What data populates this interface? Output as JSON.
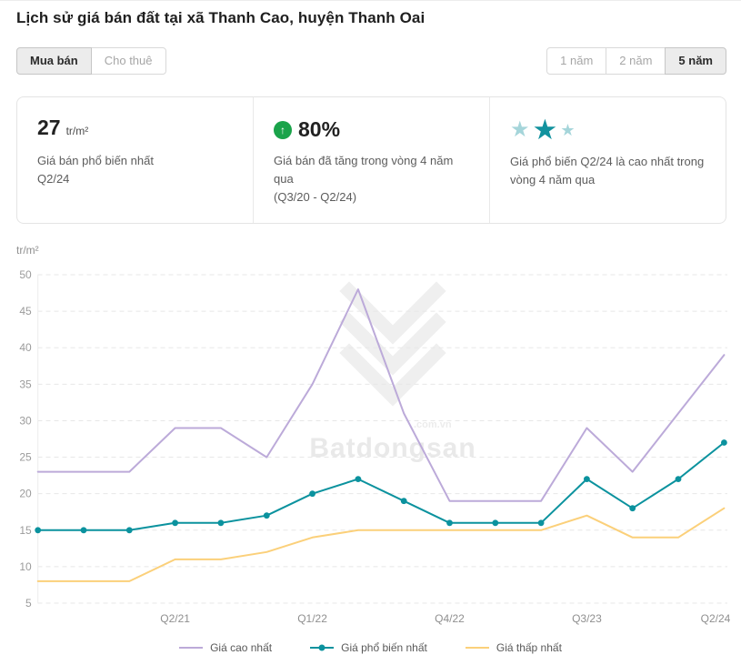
{
  "page": {
    "title": "Lịch sử giá bán đất tại xã Thanh Cao, huyện Thanh Oai"
  },
  "tabs": {
    "buy_label": "Mua bán",
    "rent_label": "Cho thuê"
  },
  "ranges": [
    {
      "label": "1 năm",
      "active": false
    },
    {
      "label": "2 năm",
      "active": false
    },
    {
      "label": "5 năm",
      "active": true
    }
  ],
  "stats": {
    "price": {
      "value": "27",
      "unit": "tr/m²",
      "line1": "Giá bán phổ biến nhất",
      "line2": "Q2/24"
    },
    "growth": {
      "value": "80%",
      "arrow": "↑",
      "arrow_color": "#1aa34a",
      "line1": "Giá bán đã tăng trong vòng 4 năm qua",
      "line2": "(Q3/20 - Q2/24)"
    },
    "rating": {
      "text": "Giá phổ biến Q2/24 là cao nhất trong vòng 4 năm qua",
      "stars": [
        {
          "color": "#a5d5da",
          "size": 24
        },
        {
          "color": "#12929e",
          "size": 31
        },
        {
          "color": "#a5d5da",
          "size": 18
        }
      ]
    }
  },
  "watermark": {
    "brand": "Batdongsan",
    "suffix": ".com.vn"
  },
  "chart_data": {
    "type": "line",
    "unit_label": "tr/m²",
    "x": [
      "Q3/20",
      "Q4/20",
      "Q1/21",
      "Q2/21",
      "Q3/21",
      "Q4/21",
      "Q1/22",
      "Q2/22",
      "Q3/22",
      "Q4/22",
      "Q1/23",
      "Q2/23",
      "Q3/23",
      "Q4/23",
      "Q1/24",
      "Q2/24"
    ],
    "x_tick_indices": [
      3,
      6,
      9,
      12,
      15
    ],
    "x_tick_labels": [
      "Q2/21",
      "Q1/22",
      "Q4/22",
      "Q3/23",
      "Q2/24"
    ],
    "ylim": [
      5,
      50
    ],
    "ytick_step": 5,
    "grid": "dashed-horizontal",
    "legend_position": "bottom",
    "series": [
      {
        "name": "Giá cao nhất",
        "color": "#bcaad9",
        "markers": false,
        "values": [
          23,
          23,
          23,
          29,
          29,
          25,
          35,
          48,
          31,
          19,
          19,
          19,
          29,
          23,
          31,
          39
        ]
      },
      {
        "name": "Giá phổ biến nhất",
        "color": "#0b929e",
        "markers": true,
        "values": [
          15,
          15,
          15,
          16,
          16,
          17,
          20,
          22,
          19,
          16,
          16,
          16,
          22,
          18,
          22,
          27
        ]
      },
      {
        "name": "Giá thấp nhất",
        "color": "#fbd07a",
        "markers": false,
        "values": [
          8,
          8,
          8,
          11,
          11,
          12,
          14,
          15,
          15,
          15,
          15,
          15,
          17,
          14,
          14,
          18
        ]
      }
    ]
  }
}
